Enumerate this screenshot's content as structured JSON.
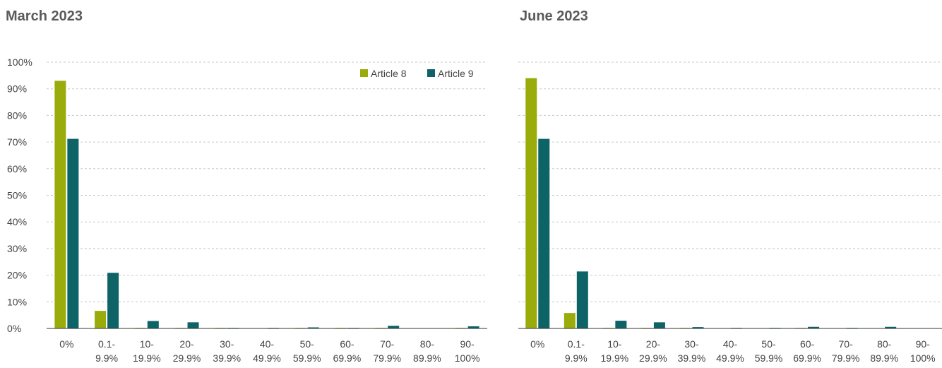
{
  "colors": {
    "article8": "#9aab0c",
    "article9": "#0d6366",
    "grid": "#c8c8c8",
    "axis": "#333333"
  },
  "charts": [
    {
      "title": "March 2023",
      "chart_data": {
        "type": "bar",
        "title": "March 2023",
        "categories": [
          "0%",
          "0.1-\n9.9%",
          "10-\n19.9%",
          "20-\n29.9%",
          "30-\n39.9%",
          "40-\n49.9%",
          "50-\n59.9%",
          "60-\n69.9%",
          "70-\n79.9%",
          "80-\n89.9%",
          "90-\n100%"
        ],
        "series": [
          {
            "name": "Article 8",
            "values": [
              93.0,
              6.6,
              0.1,
              0.1,
              0.05,
              0.0,
              0.05,
              0.05,
              0.05,
              0.0,
              0.05
            ]
          },
          {
            "name": "Article 9",
            "values": [
              71.2,
              20.9,
              2.8,
              2.3,
              0.2,
              0.1,
              0.4,
              0.2,
              1.0,
              0.0,
              0.8
            ]
          }
        ],
        "yticks": [
          "0%",
          "10%",
          "20%",
          "30%",
          "40%",
          "50%",
          "60%",
          "70%",
          "80%",
          "90%",
          "100%"
        ],
        "ylim": [
          0,
          100
        ],
        "grid": true,
        "legend": "top-right"
      }
    },
    {
      "title": "June 2023",
      "chart_data": {
        "type": "bar",
        "title": "June 2023",
        "categories": [
          "0%",
          "0.1-\n9.9%",
          "10-\n19.9%",
          "20-\n29.9%",
          "30-\n39.9%",
          "40-\n49.9%",
          "50-\n59.9%",
          "60-\n69.9%",
          "70-\n79.9%",
          "80-\n89.9%",
          "90-\n100%"
        ],
        "series": [
          {
            "name": "Article 8",
            "values": [
              94.0,
              5.8,
              0.1,
              0.1,
              0.05,
              0.0,
              0.0,
              0.05,
              0.0,
              0.0,
              0.0
            ]
          },
          {
            "name": "Article 9",
            "values": [
              71.2,
              21.4,
              2.9,
              2.3,
              0.5,
              0.1,
              0.1,
              0.6,
              0.1,
              0.6,
              0.0
            ]
          }
        ],
        "ylim": [
          0,
          100
        ],
        "grid": true,
        "legend": "none"
      }
    }
  ]
}
